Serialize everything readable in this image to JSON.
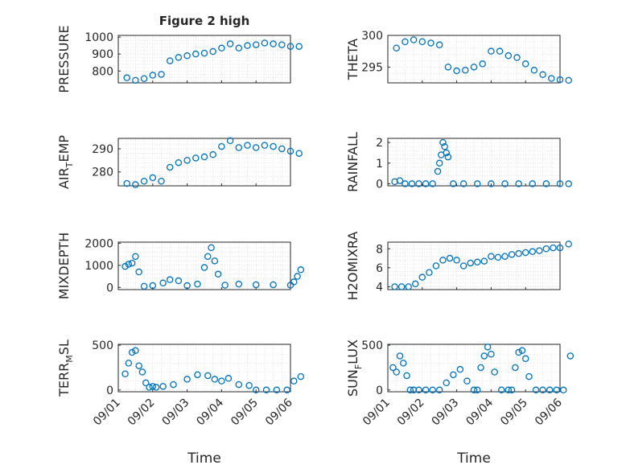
{
  "figure_title": "Figure 2 high",
  "colors": {
    "marker": "#0072BD",
    "grid": "#dcdcdc",
    "axis": "#262626"
  },
  "x_ticks": [
    "09/01",
    "09/02",
    "09/03",
    "09/04",
    "09/05",
    "09/06"
  ],
  "x_label": "Time",
  "chart_data": [
    {
      "type": "scatter",
      "title": "Figure 2 high",
      "ylabel": "PRESSURE",
      "ylim": [
        730,
        1010
      ],
      "yticks": [
        800,
        900,
        1000
      ],
      "xlim": [
        "09/01",
        "09/06"
      ],
      "grid": true,
      "x": [
        0.25,
        0.5,
        0.75,
        1.0,
        1.25,
        1.5,
        1.75,
        2.0,
        2.25,
        2.5,
        2.75,
        3.0,
        3.25,
        3.5,
        3.75,
        4.0,
        4.25,
        4.5,
        4.75,
        5.0,
        5.25
      ],
      "y": [
        760,
        745,
        755,
        775,
        780,
        860,
        880,
        890,
        900,
        905,
        915,
        935,
        960,
        935,
        950,
        955,
        965,
        960,
        955,
        945,
        945
      ]
    },
    {
      "type": "scatter",
      "ylabel": "THETA",
      "ylim": [
        292.5,
        300
      ],
      "yticks": [
        295,
        300
      ],
      "xlim": [
        "09/01",
        "09/06"
      ],
      "grid": true,
      "x": [
        0.25,
        0.5,
        0.75,
        1.0,
        1.25,
        1.5,
        1.75,
        2.0,
        2.25,
        2.5,
        2.75,
        3.0,
        3.25,
        3.5,
        3.75,
        4.0,
        4.25,
        4.5,
        4.75,
        5.0,
        5.25
      ],
      "y": [
        298,
        299,
        299.3,
        299,
        298.8,
        298.5,
        295,
        294.4,
        294.5,
        295,
        295.5,
        297.5,
        297.5,
        296.8,
        296.5,
        295.5,
        294.5,
        293.8,
        293.2,
        293,
        292.9
      ]
    },
    {
      "type": "scatter",
      "ylabel": "AIR_TEMP",
      "ylabel_main": "AIR",
      "ylabel_sub": "T",
      "ylabel_rest": "EMP",
      "ylim": [
        274,
        294.5
      ],
      "yticks": [
        280,
        290
      ],
      "xlim": [
        "09/01",
        "09/06"
      ],
      "grid": true,
      "x": [
        0.25,
        0.5,
        0.75,
        1.0,
        1.25,
        1.5,
        1.75,
        2.0,
        2.25,
        2.5,
        2.75,
        3.0,
        3.25,
        3.5,
        3.75,
        4.0,
        4.25,
        4.5,
        4.75,
        5.0,
        5.25
      ],
      "y": [
        275,
        274.5,
        276,
        277.5,
        276,
        282,
        284,
        285,
        286,
        286.5,
        287.5,
        291,
        293.5,
        290.5,
        291.5,
        290.5,
        291.5,
        291,
        290,
        289,
        288
      ]
    },
    {
      "type": "scatter",
      "ylabel": "RAINFALL",
      "ylim": [
        -0.1,
        2.2
      ],
      "yticks": [
        0,
        1,
        2
      ],
      "xlim": [
        "09/01",
        "09/06"
      ],
      "grid": true,
      "x": [
        0.2,
        0.35,
        0.5,
        0.7,
        0.9,
        1.1,
        1.3,
        1.45,
        1.5,
        1.55,
        1.6,
        1.65,
        1.7,
        1.75,
        1.9,
        2.2,
        2.6,
        3.0,
        3.4,
        3.8,
        4.2,
        4.6,
        5.0,
        5.25
      ],
      "y": [
        0.1,
        0.15,
        0,
        0,
        0,
        0,
        0,
        0.6,
        1,
        1.4,
        2,
        1.8,
        1.5,
        1.3,
        0,
        0,
        0,
        0,
        0,
        0,
        0,
        0,
        0,
        0
      ]
    },
    {
      "type": "scatter",
      "ylabel": "MIXDEPTH",
      "ylim": [
        -100,
        2050
      ],
      "yticks": [
        0,
        1000,
        2000
      ],
      "xlim": [
        "09/01",
        "09/06"
      ],
      "grid": true,
      "x": [
        0.2,
        0.3,
        0.4,
        0.5,
        0.6,
        0.75,
        1.0,
        1.3,
        1.5,
        1.75,
        2.0,
        2.3,
        2.5,
        2.6,
        2.7,
        2.8,
        2.9,
        3.1,
        3.5,
        4.0,
        4.5,
        5.0,
        5.1,
        5.2,
        5.3
      ],
      "y": [
        950,
        1050,
        1100,
        1400,
        700,
        50,
        80,
        200,
        350,
        300,
        80,
        150,
        900,
        1400,
        1800,
        1200,
        600,
        100,
        150,
        120,
        120,
        100,
        250,
        500,
        800
      ]
    },
    {
      "type": "scatter",
      "ylabel": "H2OMIXRA",
      "ylim": [
        3.7,
        8.7
      ],
      "yticks": [
        4,
        6,
        8
      ],
      "xlim": [
        "09/01",
        "09/06"
      ],
      "grid": true,
      "x": [
        0.2,
        0.4,
        0.6,
        0.8,
        1.0,
        1.2,
        1.4,
        1.6,
        1.8,
        2.0,
        2.2,
        2.4,
        2.6,
        2.8,
        3.0,
        3.2,
        3.4,
        3.6,
        3.8,
        4.0,
        4.2,
        4.4,
        4.6,
        4.8,
        5.0,
        5.25
      ],
      "y": [
        4,
        4,
        4,
        4.3,
        5,
        5.5,
        6.2,
        6.8,
        7,
        6.8,
        6.2,
        6.5,
        6.6,
        6.7,
        7.2,
        7.1,
        7.2,
        7.4,
        7.5,
        7.6,
        7.7,
        7.8,
        8,
        8.1,
        8.1,
        8.5
      ]
    },
    {
      "type": "scatter",
      "ylabel": "TERR_MSL",
      "ylabel_main": "TERR",
      "ylabel_sub": "M",
      "ylabel_rest": "SL",
      "ylim": [
        -20,
        510
      ],
      "yticks": [
        0,
        500
      ],
      "xlim": [
        "09/01",
        "09/06"
      ],
      "grid": true,
      "x": [
        0.2,
        0.3,
        0.4,
        0.5,
        0.6,
        0.7,
        0.8,
        0.9,
        1.0,
        1.1,
        1.3,
        1.6,
        2.0,
        2.3,
        2.6,
        2.8,
        3.0,
        3.2,
        3.5,
        3.8,
        4.0,
        4.3,
        4.6,
        4.9,
        5.1,
        5.3
      ],
      "y": [
        180,
        300,
        420,
        440,
        270,
        200,
        80,
        30,
        40,
        30,
        40,
        60,
        120,
        170,
        160,
        120,
        100,
        130,
        60,
        50,
        0,
        0,
        0,
        0,
        100,
        150
      ]
    },
    {
      "type": "scatter",
      "ylabel": "SUN_FLUX",
      "ylabel_main": "SUN",
      "ylabel_sub": "F",
      "ylabel_rest": "LUX",
      "ylim": [
        -20,
        510
      ],
      "yticks": [
        0,
        500
      ],
      "xlim": [
        "09/01",
        "09/06"
      ],
      "grid": true,
      "x": [
        0.15,
        0.25,
        0.35,
        0.45,
        0.55,
        0.65,
        0.75,
        0.9,
        1.1,
        1.3,
        1.5,
        1.7,
        1.9,
        2.1,
        2.3,
        2.5,
        2.6,
        2.7,
        2.8,
        2.9,
        3.0,
        3.1,
        3.3,
        3.5,
        3.6,
        3.7,
        3.8,
        3.9,
        4.0,
        4.1,
        4.3,
        4.5,
        4.7,
        4.9,
        5.1,
        5.3
      ],
      "y": [
        250,
        200,
        380,
        300,
        160,
        0,
        0,
        0,
        0,
        0,
        0,
        80,
        170,
        230,
        100,
        0,
        0,
        250,
        380,
        480,
        400,
        200,
        0,
        0,
        0,
        250,
        420,
        440,
        350,
        150,
        0,
        0,
        0,
        0,
        0,
        380
      ]
    }
  ]
}
